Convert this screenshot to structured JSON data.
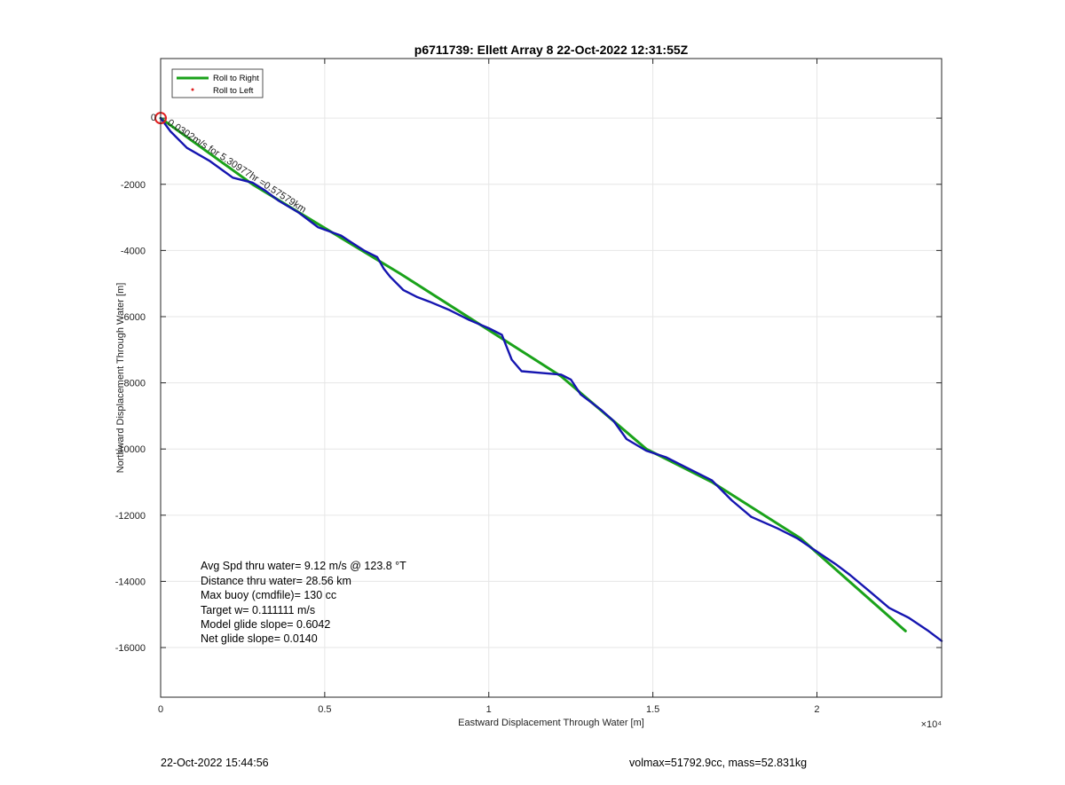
{
  "chart_data": {
    "type": "line",
    "title": "p6711739: Ellett Array 8 22-Oct-2022 12:31:55Z",
    "xlabel": "Eastward Displacement Through Water [m]",
    "ylabel": "Northward Displacement Through Water [m]",
    "x_exponent_label": "×10⁴",
    "xlim": [
      0,
      23800
    ],
    "ylim": [
      -17500,
      1800
    ],
    "x_ticks": [
      0,
      5000,
      10000,
      15000,
      20000
    ],
    "x_tick_labels": [
      "0",
      "0.5",
      "1",
      "1.5",
      "2"
    ],
    "y_ticks": [
      -16000,
      -14000,
      -12000,
      -10000,
      -8000,
      -6000,
      -4000,
      -2000,
      0
    ],
    "y_tick_labels": [
      "-16000",
      "-14000",
      "-12000",
      "-10000",
      "-8000",
      "-6000",
      "-4000",
      "-2000",
      "0"
    ],
    "grid": true,
    "legend": {
      "placement": "top-left",
      "entries": [
        "Roll to Right",
        "Roll to Left"
      ]
    },
    "series": [
      {
        "name": "Roll to Right",
        "color": "#1aa21a",
        "x": [
          0,
          2800,
          7300,
          12200,
          14800,
          16800,
          19500,
          22700
        ],
        "y": [
          0,
          -2000,
          -4700,
          -7800,
          -10000,
          -11000,
          -12700,
          -15500
        ]
      },
      {
        "color": "#1515b0",
        "x": [
          0,
          300,
          800,
          1500,
          2200,
          2800,
          3200,
          3600,
          4200,
          4800,
          5500,
          5800,
          6200,
          6600,
          6800,
          7000,
          7400,
          7800,
          8200,
          8800,
          9400,
          10000,
          10400,
          10600,
          10700,
          11000,
          11600,
          12200,
          12500,
          12800,
          13400,
          13800,
          14200,
          14800,
          15400,
          16000,
          16800,
          17400,
          18000,
          18800,
          19400,
          20000,
          20600,
          21000,
          21600,
          22200,
          22800,
          23400,
          23800
        ],
        "y": [
          0,
          -400,
          -900,
          -1300,
          -1800,
          -1950,
          -2200,
          -2500,
          -2850,
          -3300,
          -3550,
          -3750,
          -4000,
          -4200,
          -4550,
          -4800,
          -5200,
          -5400,
          -5550,
          -5800,
          -6100,
          -6350,
          -6550,
          -7050,
          -7300,
          -7650,
          -7700,
          -7750,
          -7900,
          -8350,
          -8800,
          -9150,
          -9700,
          -10050,
          -10250,
          -10550,
          -10950,
          -11550,
          -12050,
          -12400,
          -12700,
          -13100,
          -13500,
          -13800,
          -14300,
          -14800,
          -15100,
          -15500,
          -15800
        ]
      }
    ],
    "start_marker": {
      "x": 0,
      "y": 0
    },
    "track_label": "0.0302m/s for 5.30977hr =0.57579km",
    "origin_label": "0",
    "stats": [
      "Avg Spd thru water=  9.12 m/s @ 123.8 °T",
      "Distance thru water= 28.56 km",
      "Max buoy (cmdfile)= 130 cc",
      "Target w= 0.111111 m/s",
      "Model glide slope= 0.6042",
      "Net glide slope= 0.0140"
    ]
  },
  "footer": {
    "left": "22-Oct-2022 15:44:56",
    "right": "volmax=51792.9cc, mass=52.831kg"
  }
}
